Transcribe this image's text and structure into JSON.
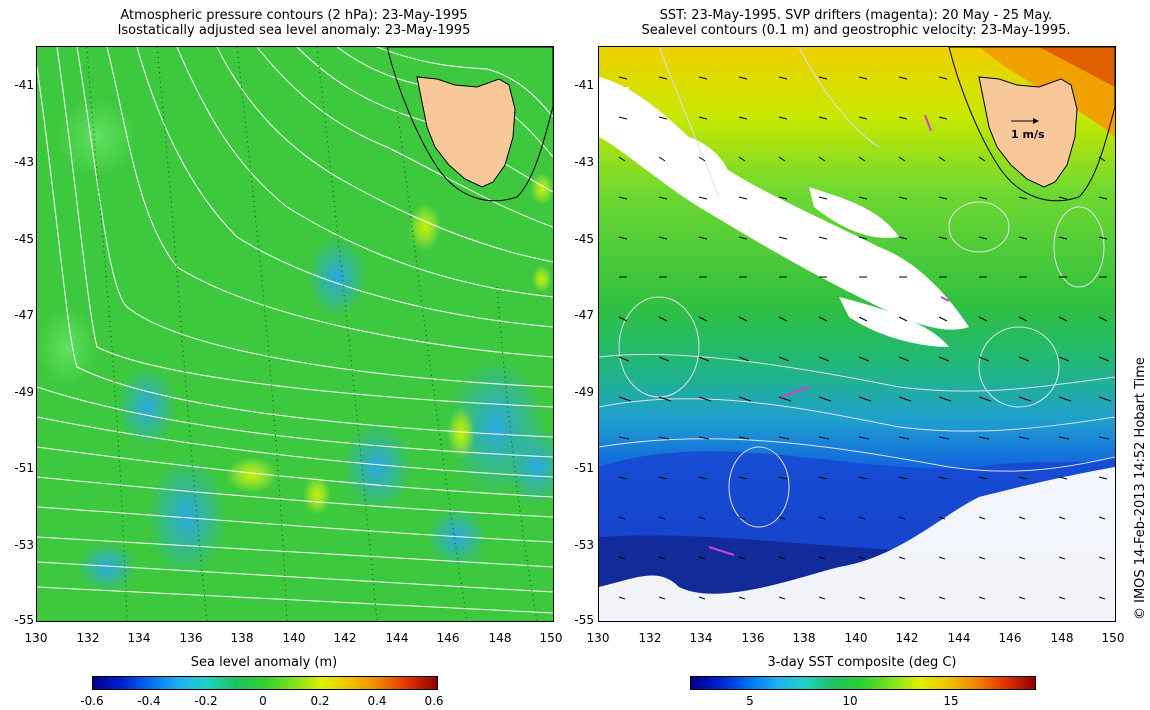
{
  "left_panel": {
    "title_line1": "Atmospheric pressure contours (2 hPa): 23-May-1995",
    "title_line2": "Isostatically adjusted sea level anomaly: 23-May-1995",
    "y_ticks": [
      "-41",
      "-43",
      "-45",
      "-47",
      "-49",
      "-51",
      "-53",
      "-55"
    ],
    "x_ticks": [
      "130",
      "132",
      "134",
      "136",
      "138",
      "140",
      "142",
      "144",
      "146",
      "148",
      "150"
    ],
    "colorbar_label": "Sea level anomaly (m)",
    "colorbar_ticks": [
      "-0.6",
      "-0.4",
      "-0.2",
      "0",
      "0.2",
      "0.4",
      "0.6"
    ]
  },
  "right_panel": {
    "title_line1": "SST: 23-May-1995. SVP drifters (magenta): 20 May - 25 May.",
    "title_line2": "Sealevel contours (0.1 m) and geostrophic velocity: 23-May-1995.",
    "y_ticks": [
      "-41",
      "-43",
      "-45",
      "-47",
      "-49",
      "-51",
      "-53",
      "-55"
    ],
    "x_ticks": [
      "130",
      "132",
      "134",
      "136",
      "138",
      "140",
      "142",
      "144",
      "146",
      "148",
      "150"
    ],
    "velocity_scale_label": "1 m/s",
    "colorbar_label": "3-day SST composite (deg C)",
    "colorbar_ticks": [
      "5",
      "10",
      "15"
    ]
  },
  "credit": "© IMOS 14-Feb-2013 14:52 Hobart Time",
  "colors": {
    "land": "#f9c89a",
    "sla_background": "#3cc83c",
    "drifter": "#d040d0"
  }
}
